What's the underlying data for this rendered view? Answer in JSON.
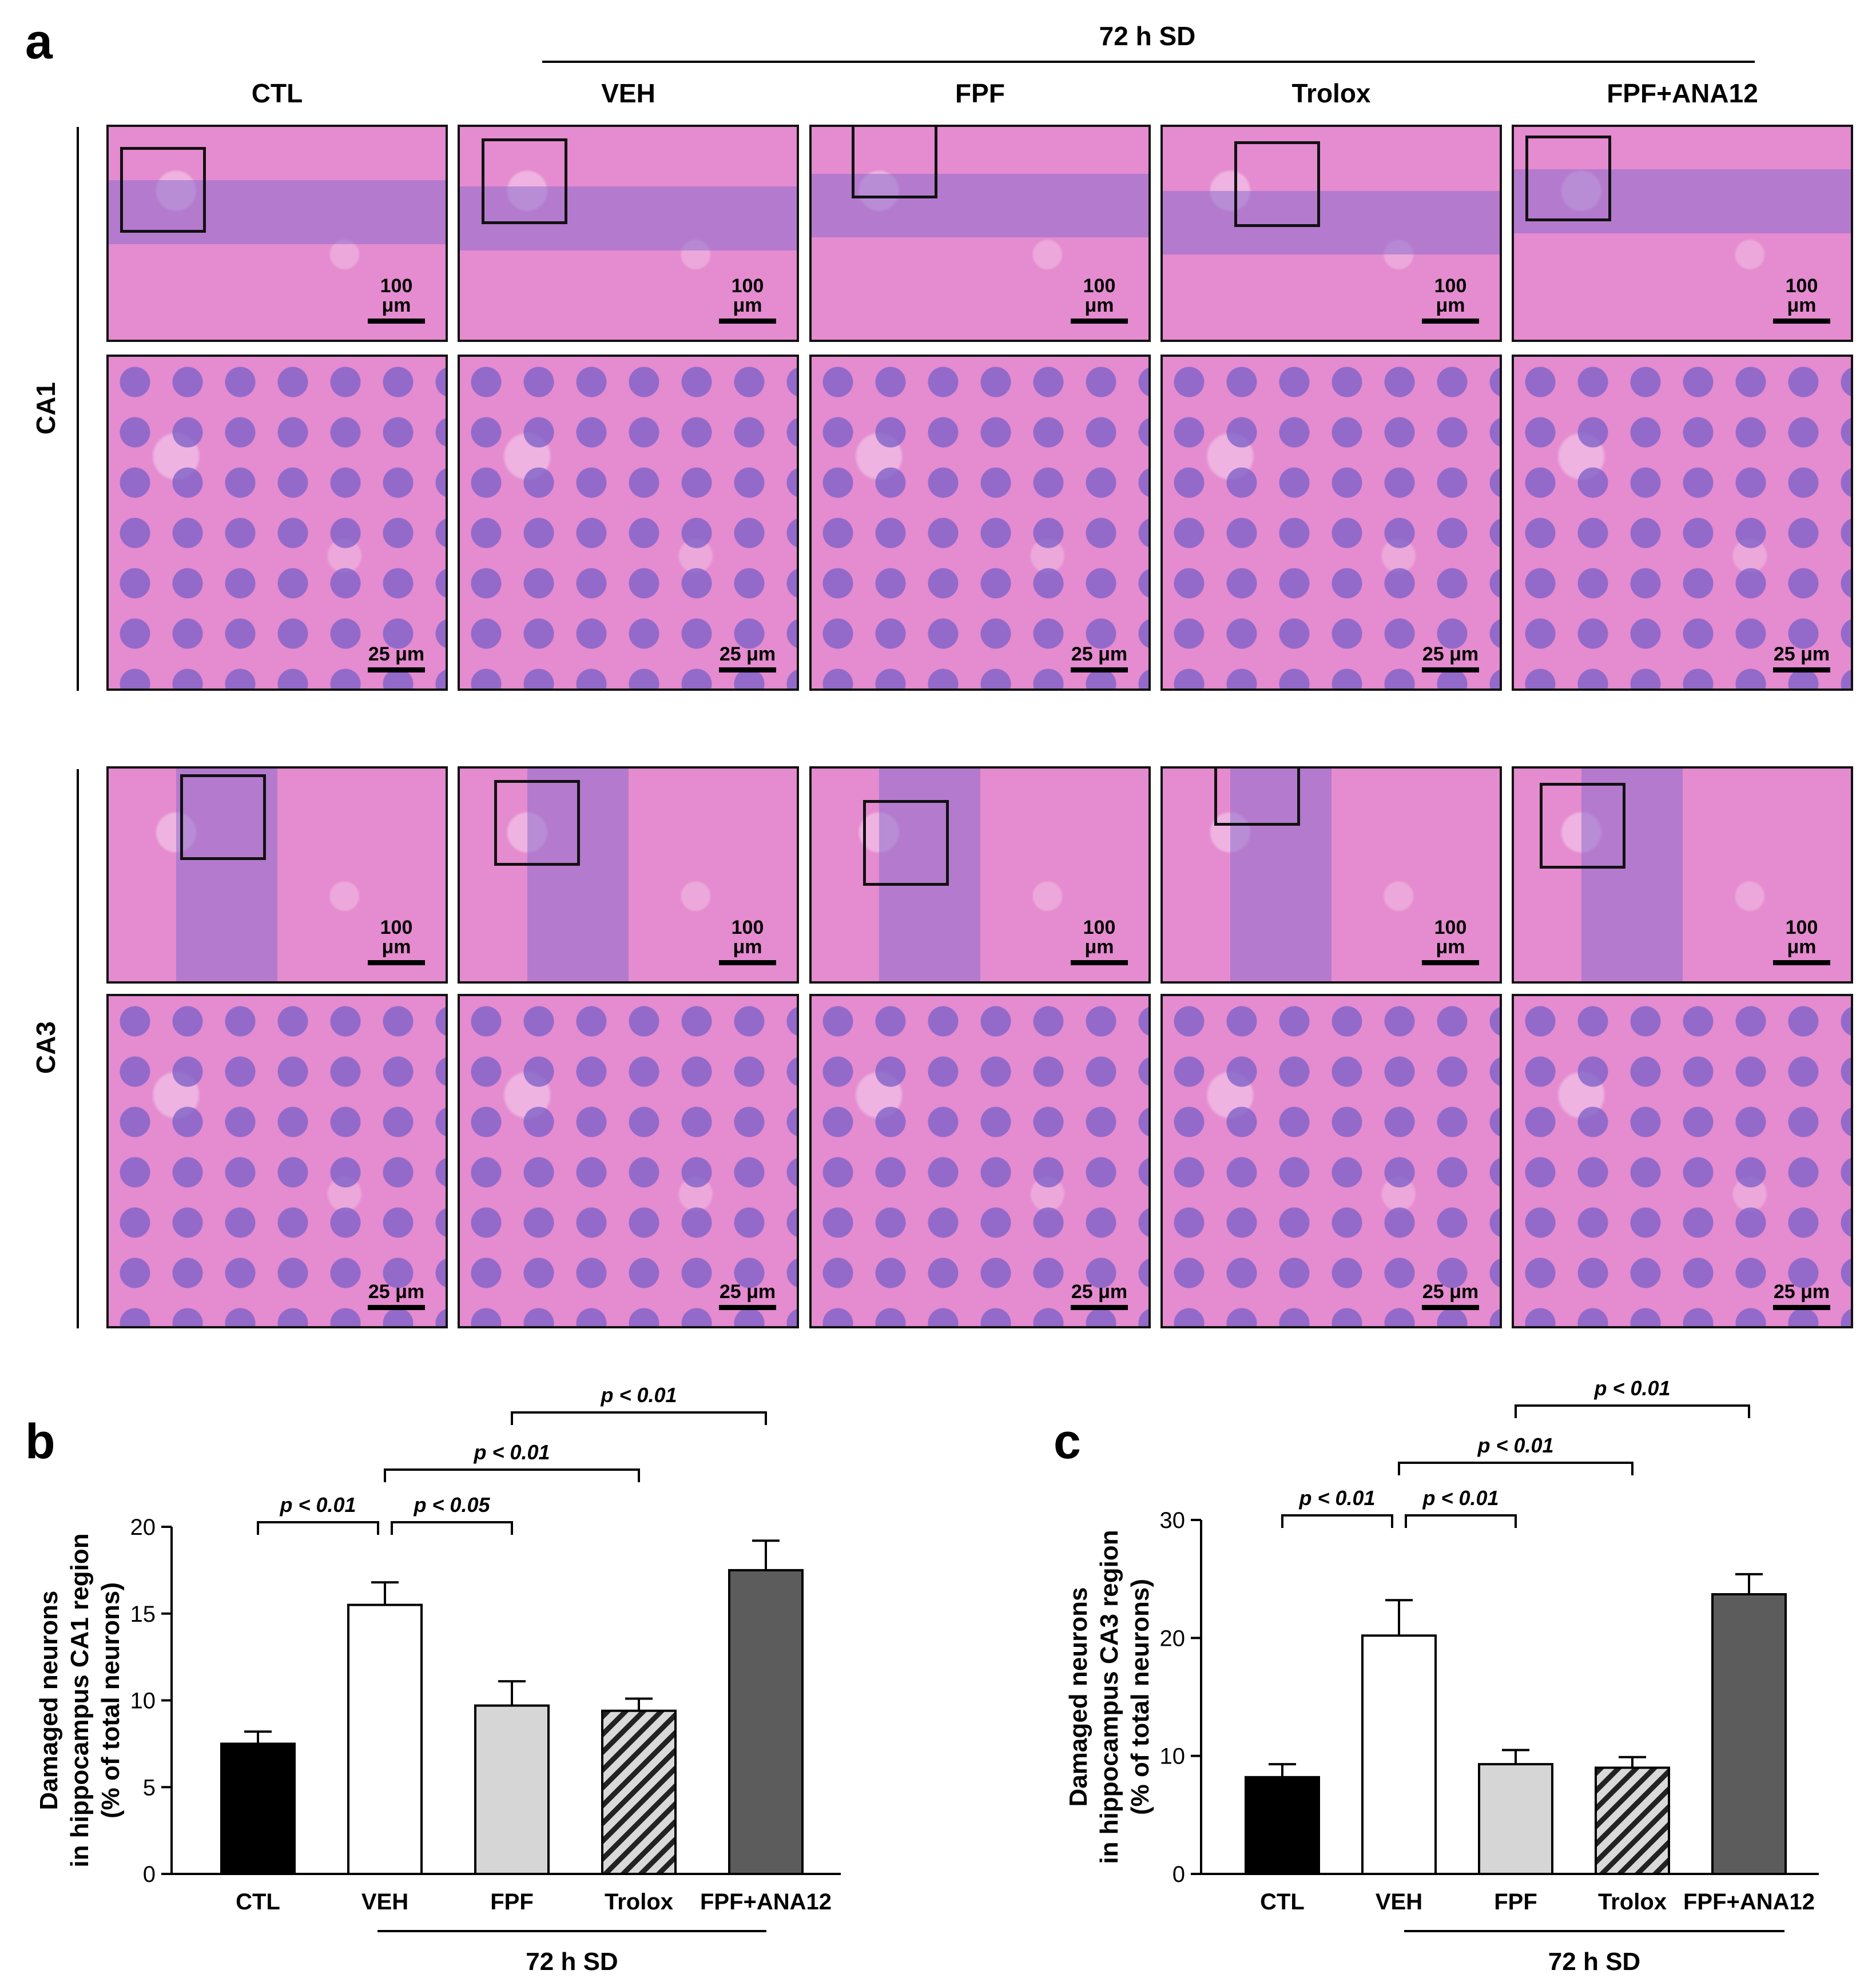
{
  "panel_a": {
    "letter": "a",
    "group_label": "72 h SD",
    "columns": [
      "CTL",
      "VEH",
      "FPF",
      "Trolox",
      "FPF+ANA12"
    ],
    "rows": [
      "CA1",
      "CA3"
    ],
    "scale_low": "100 μm",
    "scale_high": "25 μm"
  },
  "chart_data": [
    {
      "panel": "b",
      "type": "bar",
      "categories": [
        "CTL",
        "VEH",
        "FPF",
        "Trolox",
        "FPF+ANA12"
      ],
      "values": [
        7.5,
        15.5,
        9.7,
        9.4,
        17.5
      ],
      "errors": [
        0.7,
        1.3,
        1.4,
        0.7,
        1.7
      ],
      "ylabel": "Damaged neurons\nin hippocampus CA1 region\n(% of total neurons)",
      "ylim": [
        0,
        20
      ],
      "yticks": [
        "0",
        "5",
        "10",
        "15",
        "20"
      ],
      "group_label": "72 h SD",
      "bar_styles": [
        "black",
        "white",
        "light-gray",
        "hatched",
        "dark-gray"
      ],
      "comparisons": [
        {
          "from": 0,
          "to": 1,
          "label": "p < 0.01",
          "level": 0
        },
        {
          "from": 1,
          "to": 2,
          "label": "p < 0.05",
          "level": 0
        },
        {
          "from": 1,
          "to": 3,
          "label": "p < 0.01",
          "level": 1
        },
        {
          "from": 2,
          "to": 4,
          "label": "p < 0.01",
          "level": 2
        }
      ]
    },
    {
      "panel": "c",
      "type": "bar",
      "categories": [
        "CTL",
        "VEH",
        "FPF",
        "Trolox",
        "FPF+ANA12"
      ],
      "values": [
        8.2,
        20.2,
        9.3,
        9.0,
        23.7
      ],
      "errors": [
        1.1,
        3.0,
        1.2,
        0.9,
        1.7
      ],
      "ylabel": "Damaged neurons\nin hippocampus CA3 region\n(% of total neurons)",
      "ylim": [
        0,
        30
      ],
      "yticks": [
        "0",
        "10",
        "20",
        "30"
      ],
      "group_label": "72 h SD",
      "bar_styles": [
        "black",
        "white",
        "light-gray",
        "hatched",
        "dark-gray"
      ],
      "comparisons": [
        {
          "from": 0,
          "to": 1,
          "label": "p < 0.01",
          "level": 0
        },
        {
          "from": 1,
          "to": 2,
          "label": "p < 0.01",
          "level": 0
        },
        {
          "from": 1,
          "to": 3,
          "label": "p < 0.01",
          "level": 1
        },
        {
          "from": 2,
          "to": 4,
          "label": "p < 0.01",
          "level": 2
        }
      ]
    }
  ],
  "colors": {
    "stain_pink": "#e58bcf",
    "nuclei_purple": "#8c6ecd",
    "black": "#000000",
    "light_gray": "#d6d6d6",
    "dark_gray": "#5c5c5c"
  }
}
